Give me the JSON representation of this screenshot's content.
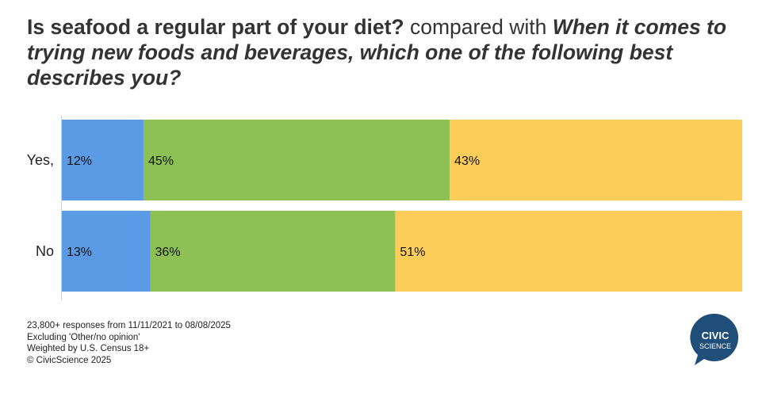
{
  "title": {
    "part1": "Is seafood a regular part of your diet?",
    "part2": " compared with ",
    "part3": "When it comes to trying new foods and beverages, which one of the following best describes you?"
  },
  "chart_data": {
    "type": "bar",
    "orientation": "horizontal",
    "stacked": true,
    "percent": true,
    "categories": [
      "Yes,",
      "No"
    ],
    "series": [
      {
        "values": [
          12,
          13
        ],
        "color": "#5B9BE6",
        "labels": [
          "12%",
          "13%"
        ]
      },
      {
        "values": [
          45,
          36
        ],
        "color": "#8DC153",
        "labels": [
          "45%",
          "36%"
        ]
      },
      {
        "values": [
          43,
          51
        ],
        "color": "#FCCD59",
        "labels": [
          "43%",
          "51%"
        ]
      }
    ],
    "xlim": [
      0,
      100
    ],
    "legend": "none",
    "grid": false
  },
  "footnote": {
    "line1": "23,800+ responses from 11/11/2021 to 08/08/2025",
    "line2": "Excluding 'Other/no opinion'",
    "line3": "Weighted by U.S. Census 18+",
    "line4": "© CivicScience 2025"
  },
  "logo": {
    "line1": "CIVIC",
    "line2": "SCIENCE",
    "color": "#1F4E79"
  }
}
